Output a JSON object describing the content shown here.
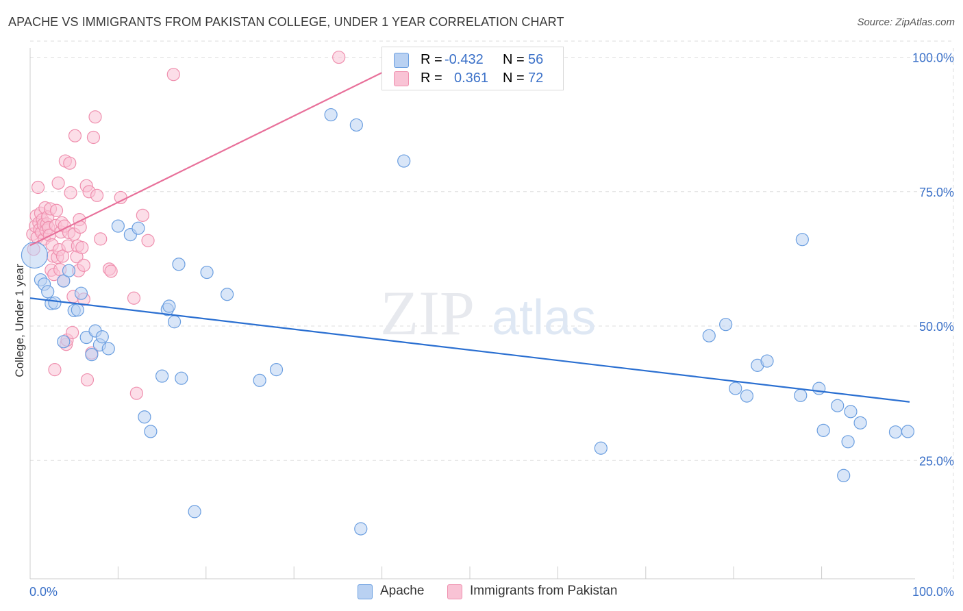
{
  "title": "APACHE VS IMMIGRANTS FROM PAKISTAN COLLEGE, UNDER 1 YEAR CORRELATION CHART",
  "source": "Source: ZipAtlas.com",
  "watermark": {
    "zip": "ZIP",
    "atlas": "atlas"
  },
  "colors": {
    "apache_fill": "#b9d1f2",
    "apache_stroke": "#6a9ee0",
    "apache_line": "#2a6fd1",
    "pakistan_fill": "#f9c3d5",
    "pakistan_stroke": "#ef8fae",
    "pakistan_line": "#e8709a",
    "axis_label_blue": "#3a70c8",
    "grid": "#dddddd"
  },
  "legend": {
    "r_label": "R =",
    "n_label": "N =",
    "apache": {
      "r": "-0.432",
      "n": "56"
    },
    "pakistan": {
      "r": "0.361",
      "n": "72"
    }
  },
  "bottom_legend": {
    "apache": "Apache",
    "pakistan": "Immigrants from Pakistan"
  },
  "chart_data": {
    "type": "scatter",
    "title": "APACHE VS IMMIGRANTS FROM PAKISTAN COLLEGE, UNDER 1 YEAR CORRELATION CHART",
    "xlabel": "",
    "ylabel": "College, Under 1 year",
    "xlim": [
      0,
      100
    ],
    "ylim": [
      3,
      103
    ],
    "x_tick_labels": [
      "0.0%",
      "100.0%"
    ],
    "y_ticks": [
      25,
      50,
      75,
      100
    ],
    "y_tick_labels": [
      "25.0%",
      "50.0%",
      "75.0%",
      "100.0%"
    ],
    "grid": true,
    "series": [
      {
        "name": "Apache",
        "r": -0.432,
        "n": 56,
        "trend": {
          "x": [
            0,
            100
          ],
          "y": [
            55.2,
            35.9
          ]
        },
        "points": [
          [
            0.5,
            63.2
          ],
          [
            1.2,
            58.6
          ],
          [
            1.6,
            57.8
          ],
          [
            2.0,
            56.4
          ],
          [
            2.4,
            54.2
          ],
          [
            2.8,
            54.3
          ],
          [
            3.8,
            58.4
          ],
          [
            3.8,
            47.1
          ],
          [
            4.4,
            60.3
          ],
          [
            5.0,
            52.9
          ],
          [
            5.4,
            53.0
          ],
          [
            5.8,
            56.1
          ],
          [
            6.4,
            47.9
          ],
          [
            7.0,
            44.7
          ],
          [
            7.4,
            49.1
          ],
          [
            7.9,
            46.5
          ],
          [
            8.2,
            48.0
          ],
          [
            8.9,
            45.8
          ],
          [
            10.0,
            68.6
          ],
          [
            11.4,
            67.0
          ],
          [
            12.3,
            68.2
          ],
          [
            13.0,
            33.1
          ],
          [
            13.7,
            30.4
          ],
          [
            15.0,
            40.7
          ],
          [
            15.6,
            53.1
          ],
          [
            15.8,
            53.7
          ],
          [
            16.4,
            50.8
          ],
          [
            16.9,
            61.5
          ],
          [
            17.2,
            40.3
          ],
          [
            18.7,
            15.5
          ],
          [
            20.1,
            60.0
          ],
          [
            22.4,
            55.9
          ],
          [
            26.1,
            39.9
          ],
          [
            28.0,
            41.9
          ],
          [
            34.2,
            89.3
          ],
          [
            37.1,
            87.4
          ],
          [
            37.6,
            12.3
          ],
          [
            42.5,
            80.7
          ],
          [
            64.9,
            27.3
          ],
          [
            77.2,
            48.2
          ],
          [
            79.1,
            50.3
          ],
          [
            80.2,
            38.4
          ],
          [
            81.5,
            37.0
          ],
          [
            82.7,
            42.7
          ],
          [
            83.8,
            43.5
          ],
          [
            87.8,
            66.1
          ],
          [
            87.6,
            37.1
          ],
          [
            89.7,
            38.4
          ],
          [
            90.2,
            30.6
          ],
          [
            91.8,
            35.2
          ],
          [
            92.5,
            22.2
          ],
          [
            93.0,
            28.5
          ],
          [
            93.3,
            34.1
          ],
          [
            94.4,
            32.0
          ],
          [
            98.4,
            30.3
          ],
          [
            99.8,
            30.4
          ]
        ]
      },
      {
        "name": "Immigrants from Pakistan",
        "r": 0.361,
        "n": 72,
        "trend": {
          "x": [
            0,
            40.1
          ],
          "y": [
            65.0,
            97.2
          ]
        },
        "points": [
          [
            0.3,
            67.1
          ],
          [
            0.4,
            64.3
          ],
          [
            0.6,
            68.6
          ],
          [
            0.7,
            70.5
          ],
          [
            0.8,
            66.5
          ],
          [
            0.9,
            75.8
          ],
          [
            1.0,
            69.2
          ],
          [
            1.1,
            68.0
          ],
          [
            1.2,
            71.0
          ],
          [
            1.3,
            67.4
          ],
          [
            1.4,
            69.8
          ],
          [
            1.5,
            68.9
          ],
          [
            1.6,
            66.2
          ],
          [
            1.7,
            72.0
          ],
          [
            1.8,
            67.8
          ],
          [
            1.9,
            69.0
          ],
          [
            2.0,
            70.3
          ],
          [
            2.1,
            68.3
          ],
          [
            2.2,
            66.9
          ],
          [
            2.3,
            71.8
          ],
          [
            2.4,
            60.4
          ],
          [
            2.5,
            65.1
          ],
          [
            2.6,
            63.0
          ],
          [
            2.7,
            59.6
          ],
          [
            2.8,
            41.9
          ],
          [
            2.9,
            68.7
          ],
          [
            3.0,
            71.5
          ],
          [
            3.1,
            62.8
          ],
          [
            3.2,
            76.6
          ],
          [
            3.3,
            64.2
          ],
          [
            3.4,
            60.5
          ],
          [
            3.5,
            67.5
          ],
          [
            3.6,
            69.2
          ],
          [
            3.7,
            63.0
          ],
          [
            3.8,
            58.4
          ],
          [
            3.9,
            68.6
          ],
          [
            4.0,
            80.7
          ],
          [
            4.1,
            46.6
          ],
          [
            4.2,
            47.4
          ],
          [
            4.3,
            64.9
          ],
          [
            4.4,
            67.4
          ],
          [
            4.5,
            80.3
          ],
          [
            4.6,
            74.8
          ],
          [
            4.8,
            48.8
          ],
          [
            4.9,
            55.5
          ],
          [
            5.0,
            67.1
          ],
          [
            5.1,
            85.4
          ],
          [
            5.3,
            62.9
          ],
          [
            5.4,
            64.9
          ],
          [
            5.5,
            60.3
          ],
          [
            5.6,
            69.8
          ],
          [
            5.7,
            68.4
          ],
          [
            5.9,
            64.6
          ],
          [
            6.1,
            61.3
          ],
          [
            6.4,
            76.1
          ],
          [
            6.5,
            40.0
          ],
          [
            6.7,
            75.0
          ],
          [
            7.0,
            45.0
          ],
          [
            7.2,
            85.1
          ],
          [
            7.4,
            88.9
          ],
          [
            7.6,
            74.3
          ],
          [
            8.0,
            66.2
          ],
          [
            9.0,
            60.6
          ],
          [
            9.2,
            60.2
          ],
          [
            10.3,
            73.9
          ],
          [
            11.8,
            55.2
          ],
          [
            12.1,
            37.5
          ],
          [
            12.8,
            70.6
          ],
          [
            13.4,
            65.9
          ],
          [
            16.3,
            96.8
          ],
          [
            35.1,
            100.0
          ],
          [
            6.1,
            55.0
          ]
        ]
      }
    ]
  }
}
